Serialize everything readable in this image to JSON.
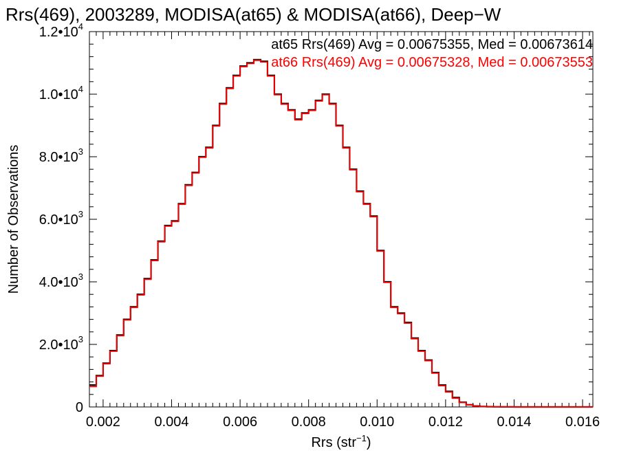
{
  "chart_data": {
    "type": "line",
    "title": "Rrs(469), 2003289, MODISA(at65) & MODISA(at66), Deep−W",
    "xlabel": "Rrs (str",
    "xlabel_sup": "−1",
    "xlabel_close": ")",
    "ylabel": "Number of Observations",
    "xlim": [
      0.0016,
      0.0163
    ],
    "ylim": [
      0,
      12000
    ],
    "grid": false,
    "x_ticks": [
      {
        "value": 0.002,
        "label": "0.002"
      },
      {
        "value": 0.004,
        "label": "0.004"
      },
      {
        "value": 0.006,
        "label": "0.006"
      },
      {
        "value": 0.008,
        "label": "0.008"
      },
      {
        "value": 0.01,
        "label": "0.010"
      },
      {
        "value": 0.012,
        "label": "0.012"
      },
      {
        "value": 0.014,
        "label": "0.014"
      },
      {
        "value": 0.016,
        "label": "0.016"
      }
    ],
    "y_ticks": [
      {
        "value": 0,
        "mant": "0",
        "exp": ""
      },
      {
        "value": 2000,
        "mant": "2.0•10",
        "exp": "3"
      },
      {
        "value": 4000,
        "mant": "4.0•10",
        "exp": "3"
      },
      {
        "value": 6000,
        "mant": "6.0•10",
        "exp": "3"
      },
      {
        "value": 8000,
        "mant": "8.0•10",
        "exp": "3"
      },
      {
        "value": 10000,
        "mant": "1.0•10",
        "exp": "4"
      },
      {
        "value": 12000,
        "mant": "1.2•10",
        "exp": "4"
      }
    ],
    "legend": [
      {
        "text": "at65 Rrs(469) Avg = 0.00675355, Med = 0.00673614",
        "color": "#000000"
      },
      {
        "text": "at66 Rrs(469) Avg = 0.00675328, Med = 0.00673553",
        "color": "#ff0000"
      }
    ],
    "series": [
      {
        "color": "#000000",
        "x": [
          0.0016,
          0.0018,
          0.002,
          0.0022,
          0.0024,
          0.0026,
          0.0028,
          0.003,
          0.0032,
          0.0034,
          0.0036,
          0.0038,
          0.004,
          0.0042,
          0.0044,
          0.0046,
          0.0048,
          0.005,
          0.0052,
          0.0054,
          0.0056,
          0.0058,
          0.006,
          0.0062,
          0.0064,
          0.0066,
          0.0068,
          0.007,
          0.0072,
          0.0074,
          0.0076,
          0.0078,
          0.008,
          0.0082,
          0.0084,
          0.0086,
          0.0088,
          0.009,
          0.0092,
          0.0094,
          0.0096,
          0.0098,
          0.01,
          0.0102,
          0.0104,
          0.0106,
          0.0108,
          0.011,
          0.0112,
          0.0114,
          0.0116,
          0.0118,
          0.012,
          0.0122,
          0.0124,
          0.0126,
          0.0128,
          0.013,
          0.0132,
          0.0134,
          0.0136,
          0.0138,
          0.014,
          0.0145,
          0.015,
          0.0155,
          0.016,
          0.0163
        ],
        "y": [
          700,
          1000,
          1400,
          1800,
          2300,
          2800,
          3200,
          3600,
          4100,
          4700,
          5300,
          5800,
          5950,
          6500,
          7100,
          7500,
          8000,
          8300,
          9000,
          9700,
          10200,
          10600,
          10900,
          11000,
          11100,
          11050,
          10600,
          10000,
          9700,
          9500,
          9200,
          9400,
          9500,
          9800,
          10000,
          9700,
          9000,
          8300,
          7600,
          6900,
          6500,
          6100,
          5000,
          4000,
          3200,
          3000,
          2700,
          2200,
          1800,
          1500,
          1100,
          700,
          500,
          300,
          150,
          70,
          30,
          15,
          8,
          5,
          3,
          2,
          1,
          1,
          0,
          0,
          0,
          0
        ]
      },
      {
        "color": "#ff0000",
        "x": [
          0.0016,
          0.0018,
          0.002,
          0.0022,
          0.0024,
          0.0026,
          0.0028,
          0.003,
          0.0032,
          0.0034,
          0.0036,
          0.0038,
          0.004,
          0.0042,
          0.0044,
          0.0046,
          0.0048,
          0.005,
          0.0052,
          0.0054,
          0.0056,
          0.0058,
          0.006,
          0.0062,
          0.0064,
          0.0066,
          0.0068,
          0.007,
          0.0072,
          0.0074,
          0.0076,
          0.0078,
          0.008,
          0.0082,
          0.0084,
          0.0086,
          0.0088,
          0.009,
          0.0092,
          0.0094,
          0.0096,
          0.0098,
          0.01,
          0.0102,
          0.0104,
          0.0106,
          0.0108,
          0.011,
          0.0112,
          0.0114,
          0.0116,
          0.0118,
          0.012,
          0.0122,
          0.0124,
          0.0126,
          0.0128,
          0.013,
          0.0132,
          0.0134,
          0.0136,
          0.0138,
          0.014,
          0.0145,
          0.015,
          0.0155,
          0.016,
          0.0163
        ],
        "y": [
          650,
          980,
          1380,
          1780,
          2280,
          2780,
          3180,
          3580,
          4080,
          4680,
          5280,
          5780,
          5930,
          6480,
          7080,
          7480,
          7980,
          8280,
          8980,
          9680,
          10180,
          10580,
          10880,
          10980,
          11080,
          11030,
          10580,
          9980,
          9680,
          9480,
          9180,
          9380,
          9480,
          9780,
          9980,
          9680,
          8980,
          8280,
          7580,
          6880,
          6480,
          6080,
          4980,
          3980,
          3180,
          2980,
          2680,
          2180,
          1780,
          1480,
          1080,
          680,
          480,
          280,
          140,
          65,
          28,
          14,
          7,
          5,
          3,
          2,
          1,
          1,
          0,
          0,
          0,
          0
        ]
      }
    ]
  }
}
